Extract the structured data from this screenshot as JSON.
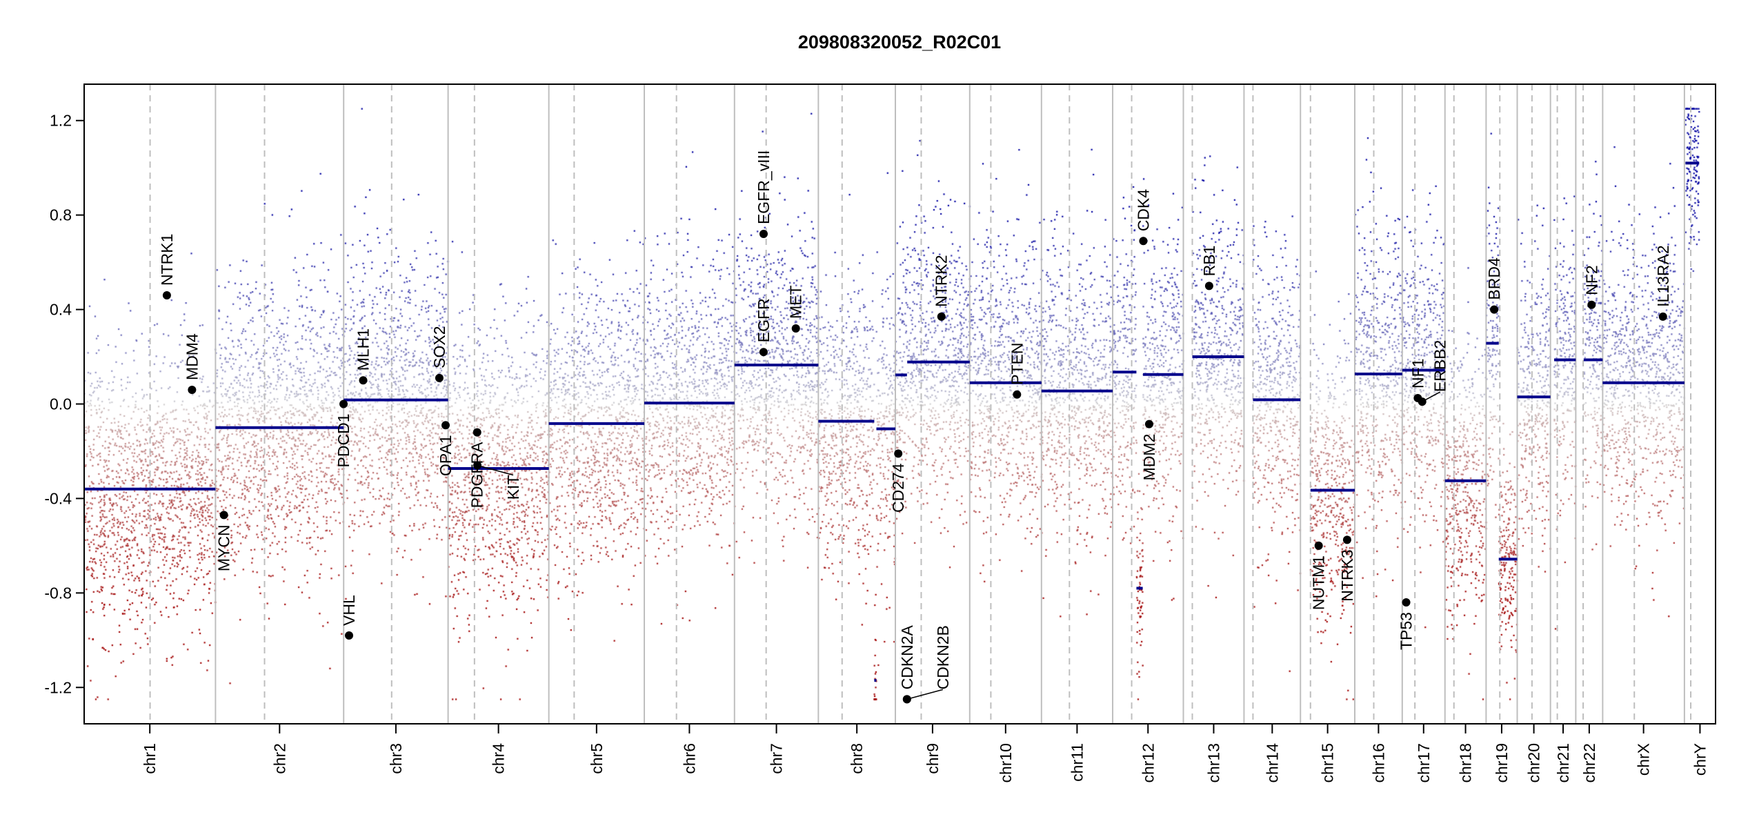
{
  "chart_data": {
    "type": "scatter",
    "title": "209808320052_R02C01",
    "xlabel": "",
    "ylabel": "",
    "ylim": [
      -1.354,
      1.354
    ],
    "clip": [
      -1.25,
      1.25
    ],
    "yticks": [
      1.2,
      0.8,
      0.4,
      0.0,
      -0.4,
      -0.8,
      -1.2
    ],
    "ytick_labels": [
      "1.2",
      "0.8",
      "0.4",
      "0.0",
      "-0.4",
      "-0.8",
      "-1.2"
    ],
    "colors": {
      "gain": "#0000a0",
      "loss": "#a00000",
      "neutral": "#d3d3d3",
      "segment": "#00008b",
      "boundary": "#bebebe",
      "centromere": "#bebebe",
      "gene_dot": "#000000"
    },
    "chromosomes": [
      {
        "name": "chr1",
        "length": 249,
        "centromere": 125
      },
      {
        "name": "chr2",
        "length": 243,
        "centromere": 93
      },
      {
        "name": "chr3",
        "length": 198,
        "centromere": 91
      },
      {
        "name": "chr4",
        "length": 191,
        "centromere": 50
      },
      {
        "name": "chr5",
        "length": 181,
        "centromere": 48
      },
      {
        "name": "chr6",
        "length": 171,
        "centromere": 61
      },
      {
        "name": "chr7",
        "length": 159,
        "centromere": 60
      },
      {
        "name": "chr8",
        "length": 146,
        "centromere": 45
      },
      {
        "name": "chr9",
        "length": 141,
        "centromere": 49
      },
      {
        "name": "chr10",
        "length": 136,
        "centromere": 40
      },
      {
        "name": "chr11",
        "length": 135,
        "centromere": 53
      },
      {
        "name": "chr12",
        "length": 134,
        "centromere": 36
      },
      {
        "name": "chr13",
        "length": 115,
        "centromere": 17
      },
      {
        "name": "chr14",
        "length": 107,
        "centromere": 17
      },
      {
        "name": "chr15",
        "length": 103,
        "centromere": 19
      },
      {
        "name": "chr16",
        "length": 90,
        "centromere": 36
      },
      {
        "name": "chr17",
        "length": 81,
        "centromere": 24
      },
      {
        "name": "chr18",
        "length": 78,
        "centromere": 17
      },
      {
        "name": "chr19",
        "length": 59,
        "centromere": 26
      },
      {
        "name": "chr20",
        "length": 63,
        "centromere": 28
      },
      {
        "name": "chr21",
        "length": 48,
        "centromere": 13
      },
      {
        "name": "chr22",
        "length": 51,
        "centromere": 14
      },
      {
        "name": "chrX",
        "length": 155,
        "centromere": 60
      },
      {
        "name": "chrY",
        "length": 59,
        "centromere": 12
      }
    ],
    "segments": [
      {
        "chr": "chr1",
        "start": 0,
        "end": 249,
        "value": -0.36
      },
      {
        "chr": "chr2",
        "start": 0,
        "end": 243,
        "value": -0.1
      },
      {
        "chr": "chr3",
        "start": 0,
        "end": 198,
        "value": 0.017
      },
      {
        "chr": "chr4",
        "start": 0,
        "end": 191,
        "value": -0.273
      },
      {
        "chr": "chr5",
        "start": 0,
        "end": 181,
        "value": -0.083
      },
      {
        "chr": "chr6",
        "start": 0,
        "end": 171,
        "value": 0.004
      },
      {
        "chr": "chr7",
        "start": 0,
        "end": 159,
        "value": 0.165
      },
      {
        "chr": "chr8",
        "start": 0,
        "end": 106,
        "value": -0.073
      },
      {
        "chr": "chr8",
        "start": 106,
        "end": 110,
        "value": -1.17
      },
      {
        "chr": "chr8",
        "start": 110,
        "end": 146,
        "value": -0.105
      },
      {
        "chr": "chr9",
        "start": 0,
        "end": 22,
        "value": 0.123
      },
      {
        "chr": "chr9",
        "start": 22.5,
        "end": 141,
        "value": 0.178
      },
      {
        "chr": "chr10",
        "start": 0,
        "end": 136,
        "value": 0.09
      },
      {
        "chr": "chr11",
        "start": 0,
        "end": 135,
        "value": 0.055
      },
      {
        "chr": "chr12",
        "start": 0,
        "end": 45,
        "value": 0.135
      },
      {
        "chr": "chr12",
        "start": 45,
        "end": 57,
        "value": -0.78
      },
      {
        "chr": "chr12",
        "start": 57.5,
        "end": 134,
        "value": 0.125
      },
      {
        "chr": "chr13",
        "start": 17,
        "end": 115,
        "value": 0.2
      },
      {
        "chr": "chr14",
        "start": 17,
        "end": 107,
        "value": 0.018
      },
      {
        "chr": "chr15",
        "start": 19,
        "end": 103,
        "value": -0.365
      },
      {
        "chr": "chr16",
        "start": 0,
        "end": 90,
        "value": 0.127
      },
      {
        "chr": "chr17",
        "start": 0,
        "end": 81,
        "value": 0.143
      },
      {
        "chr": "chr18",
        "start": 0,
        "end": 78,
        "value": -0.325
      },
      {
        "chr": "chr19",
        "start": 0,
        "end": 24,
        "value": 0.257
      },
      {
        "chr": "chr19",
        "start": 24,
        "end": 59,
        "value": -0.657
      },
      {
        "chr": "chr20",
        "start": 0,
        "end": 63,
        "value": 0.03
      },
      {
        "chr": "chr21",
        "start": 7,
        "end": 48,
        "value": 0.187
      },
      {
        "chr": "chr22",
        "start": 15,
        "end": 51,
        "value": 0.187
      },
      {
        "chr": "chrX",
        "start": 0,
        "end": 155,
        "value": 0.09
      },
      {
        "chr": "chrY",
        "start": 2,
        "end": 28,
        "value": 1.02
      }
    ],
    "genes": [
      {
        "name": "NTRK1",
        "chr": "chr1",
        "pos": 156.8,
        "value": 0.46,
        "label_side": "above"
      },
      {
        "name": "MDM4",
        "chr": "chr1",
        "pos": 204.5,
        "value": 0.06,
        "label_side": "above"
      },
      {
        "name": "MYCN",
        "chr": "chr2",
        "pos": 16.0,
        "value": -0.47,
        "label_side": "below"
      },
      {
        "name": "PDCD1",
        "chr": "chr2",
        "pos": 242.8,
        "value": 0.0,
        "label_side": "below"
      },
      {
        "name": "VHL",
        "chr": "chr3",
        "pos": 10.2,
        "value": -0.98,
        "label_side": "above"
      },
      {
        "name": "MLH1",
        "chr": "chr3",
        "pos": 37.0,
        "value": 0.1,
        "label_side": "above"
      },
      {
        "name": "SOX2",
        "chr": "chr3",
        "pos": 181.4,
        "value": 0.11,
        "label_side": "above"
      },
      {
        "name": "OPA1",
        "chr": "chr3",
        "pos": 193.3,
        "value": -0.09,
        "label_side": "below"
      },
      {
        "name": "PDGFRA",
        "chr": "chr4",
        "pos": 55.1,
        "value": -0.12,
        "label_side": "below"
      },
      {
        "name": "KIT",
        "chr": "chr4",
        "pos": 55.5,
        "value": -0.26,
        "label_side": "below"
      },
      {
        "name": "EGFR_vIII",
        "chr": "chr7",
        "pos": 55.2,
        "value": 0.72,
        "label_side": "above"
      },
      {
        "name": "EGFR",
        "chr": "chr7",
        "pos": 55.1,
        "value": 0.22,
        "label_side": "above"
      },
      {
        "name": "MET",
        "chr": "chr7",
        "pos": 116.3,
        "value": 0.32,
        "label_side": "above"
      },
      {
        "name": "CD274",
        "chr": "chr9",
        "pos": 5.5,
        "value": -0.21,
        "label_side": "below"
      },
      {
        "name": "CDKN2A",
        "chr": "chr9",
        "pos": 21.97,
        "value": -1.25,
        "label_side": "above"
      },
      {
        "name": "CDKN2B",
        "chr": "chr9",
        "pos": 22.0,
        "value": -1.25,
        "label_side": "above"
      },
      {
        "name": "NTRK2",
        "chr": "chr9",
        "pos": 87.3,
        "value": 0.37,
        "label_side": "above"
      },
      {
        "name": "PTEN",
        "chr": "chr10",
        "pos": 89.6,
        "value": 0.04,
        "label_side": "above"
      },
      {
        "name": "CDK4",
        "chr": "chr12",
        "pos": 58.1,
        "value": 0.69,
        "label_side": "above"
      },
      {
        "name": "MDM2",
        "chr": "chr12",
        "pos": 69.2,
        "value": -0.085,
        "label_side": "below"
      },
      {
        "name": "RB1",
        "chr": "chr13",
        "pos": 48.9,
        "value": 0.5,
        "label_side": "above"
      },
      {
        "name": "NUTM1",
        "chr": "chr15",
        "pos": 34.6,
        "value": -0.6,
        "label_side": "below"
      },
      {
        "name": "NTRK3",
        "chr": "chr15",
        "pos": 88.5,
        "value": -0.575,
        "label_side": "below"
      },
      {
        "name": "TP53",
        "chr": "chr17",
        "pos": 7.5,
        "value": -0.84,
        "label_side": "below"
      },
      {
        "name": "NF1",
        "chr": "chr17",
        "pos": 29.5,
        "value": 0.025,
        "label_side": "above"
      },
      {
        "name": "ERBB2",
        "chr": "chr17",
        "pos": 37.8,
        "value": 0.01,
        "label_side": "above"
      },
      {
        "name": "BRD4",
        "chr": "chr19",
        "pos": 15.3,
        "value": 0.4,
        "label_side": "above"
      },
      {
        "name": "NF2",
        "chr": "chr22",
        "pos": 30.0,
        "value": 0.42,
        "label_side": "above"
      },
      {
        "name": "IL13RA2",
        "chr": "chrX",
        "pos": 114.3,
        "value": 0.37,
        "label_side": "above"
      }
    ]
  }
}
